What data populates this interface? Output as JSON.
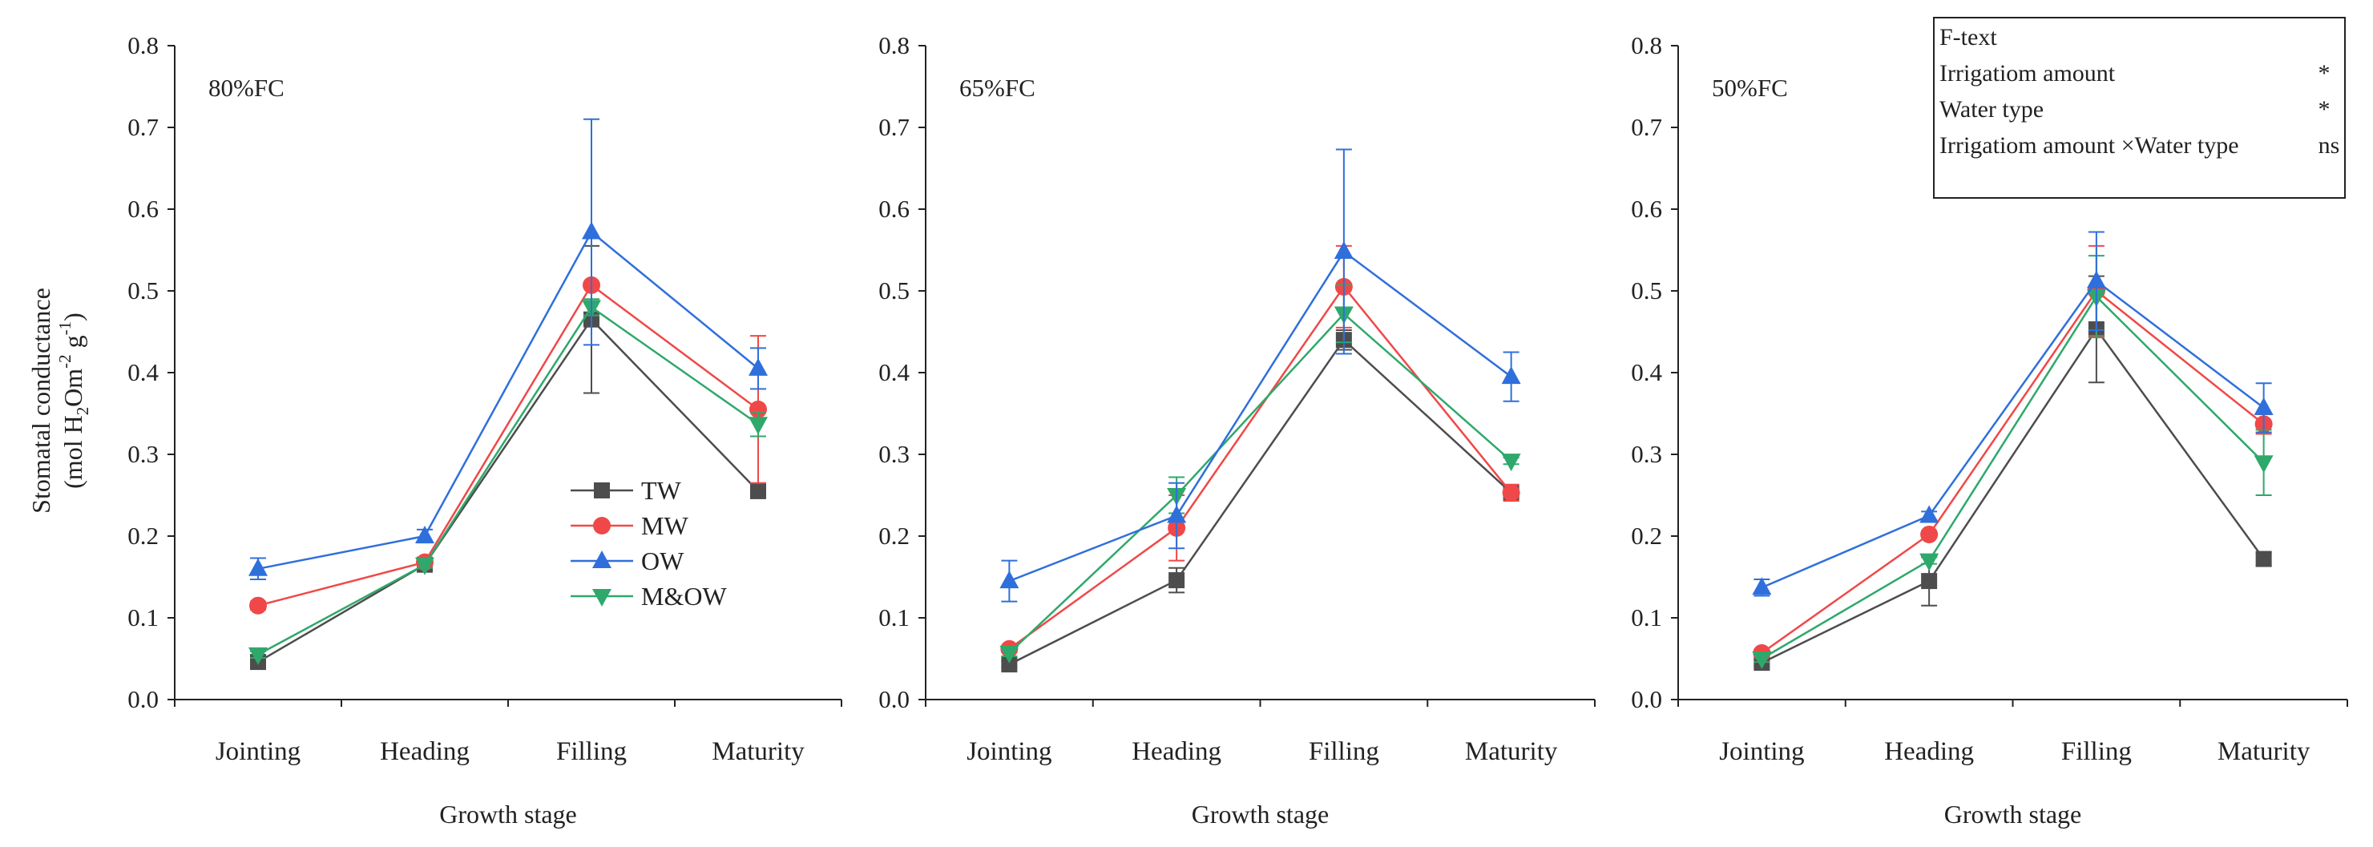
{
  "chart_data": [
    {
      "type": "line",
      "panel_label": "80%FC",
      "categories": [
        "Jointing",
        "Heading",
        "Filling",
        "Maturity"
      ],
      "xlabel": "Growth stage",
      "ylabel_line1": "Stomatal conductance",
      "ylabel_line2": "(mol H2Om-2 g-1)",
      "ylim": [
        0,
        0.8
      ],
      "yticks": [
        "0.0",
        "0.1",
        "0.2",
        "0.3",
        "0.4",
        "0.5",
        "0.6",
        "0.7",
        "0.8"
      ],
      "legend_position": "center",
      "series": [
        {
          "name": "TW",
          "values": [
            0.046,
            0.165,
            0.465,
            0.255
          ],
          "errors": [
            0.004,
            0.004,
            0.09,
            0.004
          ]
        },
        {
          "name": "MW",
          "values": [
            0.115,
            0.168,
            0.507,
            0.355
          ],
          "errors": [
            0.005,
            0.004,
            0.0,
            0.09
          ]
        },
        {
          "name": "OW",
          "values": [
            0.16,
            0.2,
            0.572,
            0.405
          ],
          "errors": [
            0.013,
            0.008,
            0.138,
            0.025
          ]
        },
        {
          "name": "M&OW",
          "values": [
            0.055,
            0.165,
            0.48,
            0.337
          ],
          "errors": [
            0.004,
            0.004,
            0.01,
            0.015
          ]
        }
      ]
    },
    {
      "type": "line",
      "panel_label": "65%FC",
      "categories": [
        "Jointing",
        "Heading",
        "Filling",
        "Maturity"
      ],
      "xlabel": "Growth stage",
      "ylim": [
        0,
        0.8
      ],
      "yticks": [
        "0.0",
        "0.1",
        "0.2",
        "0.3",
        "0.4",
        "0.5",
        "0.6",
        "0.7",
        "0.8"
      ],
      "series": [
        {
          "name": "TW",
          "values": [
            0.043,
            0.146,
            0.44,
            0.253
          ],
          "errors": [
            0.004,
            0.015,
            0.012,
            0.005
          ]
        },
        {
          "name": "MW",
          "values": [
            0.062,
            0.21,
            0.505,
            0.253
          ],
          "errors": [
            0.004,
            0.04,
            0.05,
            0.01
          ]
        },
        {
          "name": "OW",
          "values": [
            0.145,
            0.225,
            0.548,
            0.395
          ],
          "errors": [
            0.025,
            0.04,
            0.125,
            0.03
          ]
        },
        {
          "name": "M&OW",
          "values": [
            0.057,
            0.25,
            0.472,
            0.292
          ],
          "errors": [
            0.004,
            0.022,
            0.035,
            0.004
          ]
        }
      ]
    },
    {
      "type": "line",
      "panel_label": "50%FC",
      "categories": [
        "Jointing",
        "Heading",
        "Filling",
        "Maturity"
      ],
      "xlabel": "Growth stage",
      "ylim": [
        0,
        0.8
      ],
      "yticks": [
        "0.0",
        "0.1",
        "0.2",
        "0.3",
        "0.4",
        "0.5",
        "0.6",
        "0.7",
        "0.8"
      ],
      "series": [
        {
          "name": "TW",
          "values": [
            0.045,
            0.145,
            0.453,
            0.172
          ],
          "errors": [
            0.004,
            0.03,
            0.065,
            0.008
          ]
        },
        {
          "name": "MW",
          "values": [
            0.057,
            0.202,
            0.5,
            0.337
          ],
          "errors": [
            0.004,
            0.004,
            0.055,
            0.012
          ]
        },
        {
          "name": "OW",
          "values": [
            0.137,
            0.225,
            0.512,
            0.357
          ],
          "errors": [
            0.01,
            0.005,
            0.06,
            0.03
          ]
        },
        {
          "name": "M&OW",
          "values": [
            0.05,
            0.17,
            0.493,
            0.29
          ],
          "errors": [
            0.004,
            0.004,
            0.05,
            0.04
          ]
        }
      ]
    }
  ],
  "series_colors": {
    "TW": "#4d4d4d",
    "MW": "#f04848",
    "OW": "#2f6fdc",
    "M&OW": "#2fa86b"
  },
  "series_markers": {
    "TW": "square",
    "MW": "circle",
    "OW": "triangle-up",
    "M&OW": "triangle-down"
  },
  "stats_table": {
    "header": "F-text",
    "rows": [
      {
        "label": "Irrigatiom amount",
        "value": "*"
      },
      {
        "label": "Water type",
        "value": "*"
      },
      {
        "label": "Irrigatiom amount ×Water type",
        "value": "ns"
      }
    ]
  }
}
